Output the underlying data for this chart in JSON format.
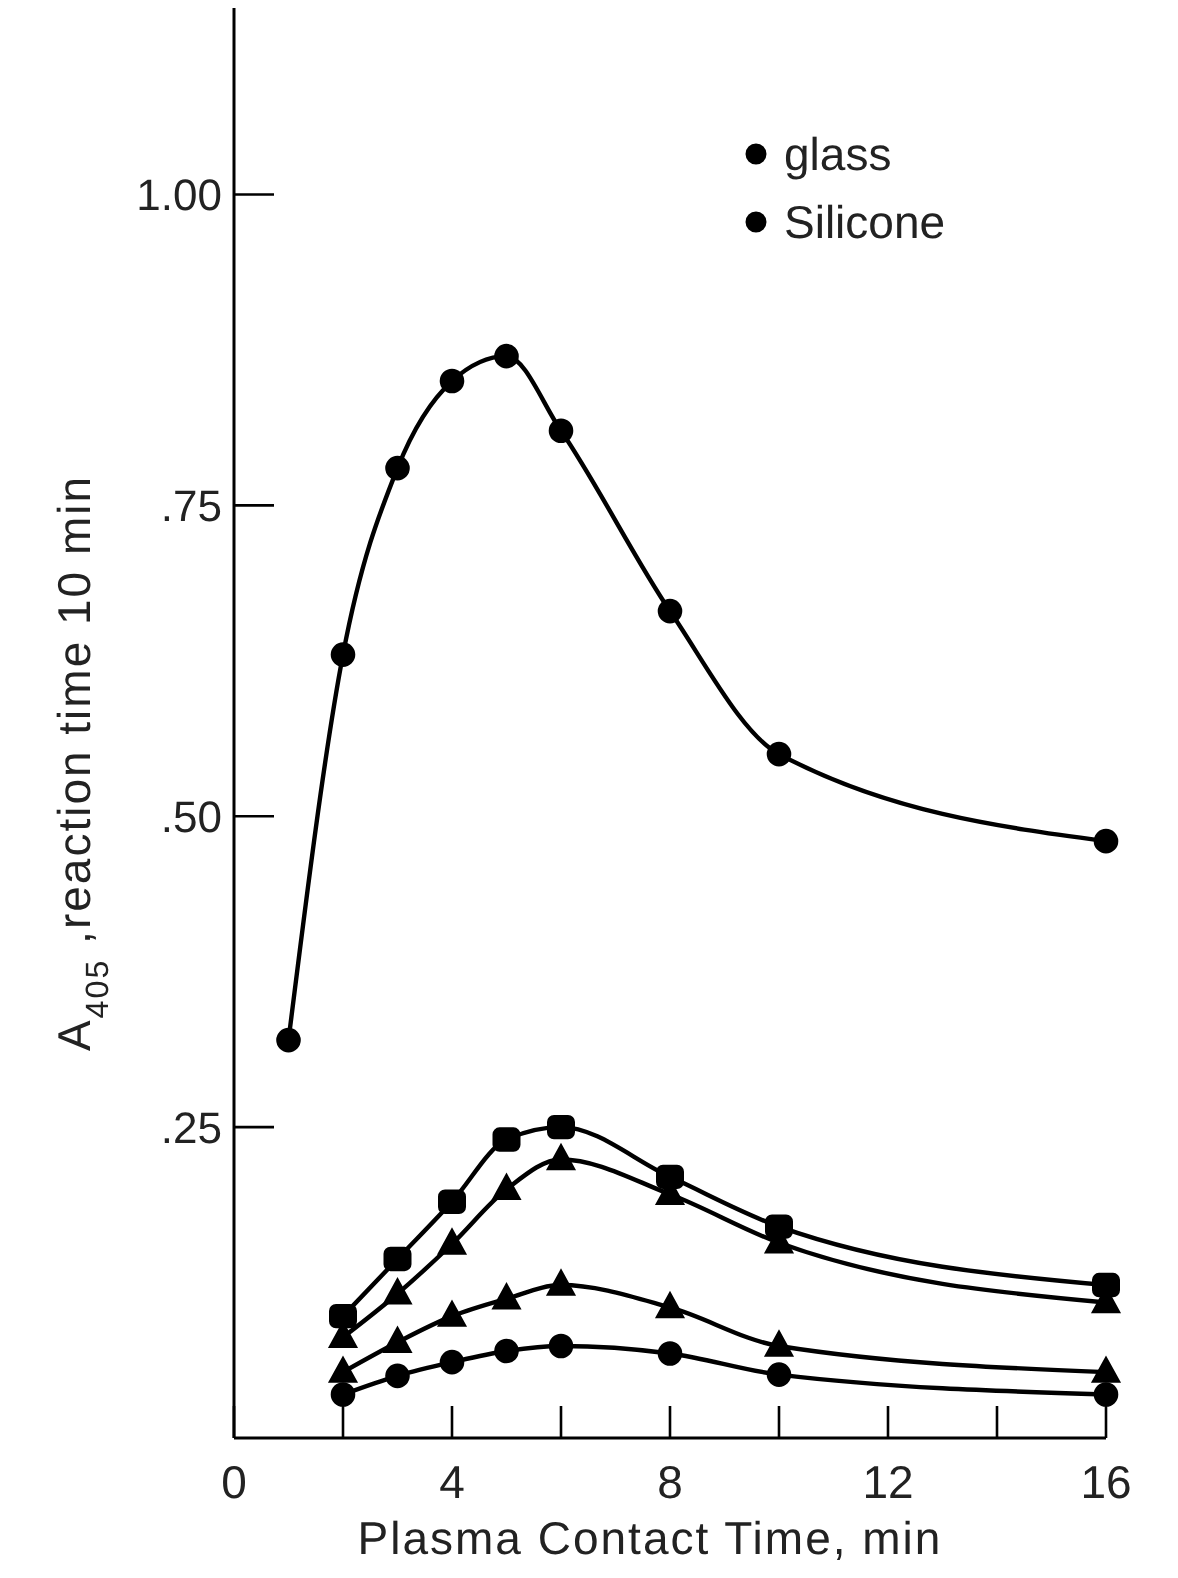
{
  "chart_data": {
    "type": "line",
    "xlabel": "Plasma Contact Time, min",
    "ylabel": "A$_{405}$ ,reaction time 10 min",
    "x": [
      1,
      2,
      3,
      4,
      5,
      6,
      8,
      10,
      16
    ],
    "series": [
      {
        "name": "glass",
        "color": "#000000",
        "marker": "circle",
        "values": [
          0.32,
          0.63,
          0.78,
          0.85,
          0.87,
          0.81,
          0.665,
          0.55,
          0.48
        ]
      },
      {
        "color": "#000000",
        "marker": "square",
        "x": [
          2,
          3,
          4,
          5,
          6,
          8,
          10,
          16
        ],
        "values": [
          0.098,
          0.144,
          0.19,
          0.24,
          0.25,
          0.21,
          0.17,
          0.123
        ]
      },
      {
        "color": "#000000",
        "marker": "triangle",
        "x": [
          2,
          3,
          4,
          5,
          6,
          8,
          10,
          16
        ],
        "values": [
          0.081,
          0.116,
          0.156,
          0.2,
          0.224,
          0.196,
          0.157,
          0.109
        ]
      },
      {
        "color": "#000000",
        "marker": "triangle",
        "x": [
          2,
          3,
          4,
          5,
          6,
          8,
          10,
          16
        ],
        "values": [
          0.053,
          0.077,
          0.098,
          0.112,
          0.123,
          0.105,
          0.074,
          0.053
        ]
      },
      {
        "name": "Silicone",
        "color": "#000000",
        "marker": "circle",
        "x": [
          2,
          3,
          4,
          5,
          6,
          8,
          10,
          16
        ],
        "values": [
          0.035,
          0.05,
          0.061,
          0.07,
          0.074,
          0.068,
          0.051,
          0.035
        ]
      }
    ],
    "xlim": [
      0,
      16
    ],
    "xticks": [
      0,
      {
        "value": 2,
        "label": null
      },
      4,
      {
        "value": 6,
        "label": null
      },
      8,
      {
        "value": 10,
        "label": null
      },
      12,
      {
        "value": 14,
        "label": null
      },
      16
    ],
    "ylim": [
      0,
      1.15
    ],
    "yticks": [
      {
        "value": 0.25,
        "label": ".25"
      },
      {
        "value": 0.5,
        "label": ".50"
      },
      {
        "value": 0.75,
        "label": ".75"
      },
      {
        "value": 1,
        "label": "1.00"
      }
    ],
    "grid": false,
    "legend": "top right",
    "line_style": "solid"
  }
}
